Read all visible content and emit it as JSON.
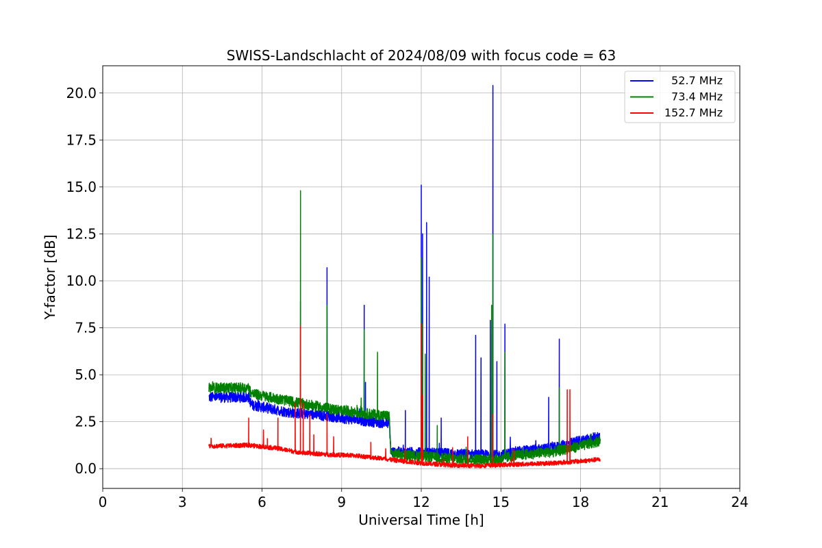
{
  "chart_data": {
    "type": "line",
    "title": "SWISS-Landschlacht of 2024/08/09 with focus code = 63",
    "xlabel": "Universal Time [h]",
    "ylabel": "Y-factor [dB]",
    "xlim": [
      0,
      24
    ],
    "ylim": [
      -1.05,
      21.45
    ],
    "xticks": [
      "0",
      "3",
      "6",
      "9",
      "12",
      "15",
      "18",
      "21",
      "24"
    ],
    "xtick_values": [
      0,
      3,
      6,
      9,
      12,
      15,
      18,
      21,
      24
    ],
    "yticks": [
      "0.0",
      "2.5",
      "5.0",
      "7.5",
      "10.0",
      "12.5",
      "15.0",
      "17.5",
      "20.0"
    ],
    "ytick_values": [
      0,
      2.5,
      5,
      7.5,
      10,
      12.5,
      15,
      17.5,
      20
    ],
    "grid": true,
    "legend_position": "top-right",
    "series": [
      {
        "name": "52.7 MHz",
        "color": "#0000ff",
        "baseline": [
          [
            4.0,
            3.8
          ],
          [
            5.5,
            3.8
          ],
          [
            5.6,
            3.4
          ],
          [
            7.0,
            3.0
          ],
          [
            8.5,
            2.8
          ],
          [
            9.5,
            2.6
          ],
          [
            10.8,
            2.4
          ],
          [
            10.85,
            0.9
          ],
          [
            13.0,
            0.8
          ],
          [
            15.0,
            0.7
          ],
          [
            15.5,
            0.9
          ],
          [
            17.0,
            1.1
          ],
          [
            18.0,
            1.5
          ],
          [
            18.75,
            1.7
          ]
        ],
        "noise": 0.28,
        "spikes": [
          [
            7.45,
            8.9
          ],
          [
            8.45,
            10.7
          ],
          [
            9.85,
            8.7
          ],
          [
            9.9,
            4.6
          ],
          [
            11.4,
            3.1
          ],
          [
            12.0,
            15.1
          ],
          [
            12.05,
            12.5
          ],
          [
            12.2,
            13.1
          ],
          [
            12.3,
            10.2
          ],
          [
            12.75,
            2.7
          ],
          [
            14.05,
            7.1
          ],
          [
            14.25,
            5.9
          ],
          [
            14.6,
            7.9
          ],
          [
            14.7,
            20.4
          ],
          [
            14.85,
            5.7
          ],
          [
            15.15,
            7.7
          ],
          [
            16.8,
            3.8
          ],
          [
            17.2,
            6.9
          ]
        ]
      },
      {
        "name": "73.4 MHz",
        "color": "#008000",
        "baseline": [
          [
            4.0,
            4.3
          ],
          [
            5.5,
            4.3
          ],
          [
            5.6,
            4.0
          ],
          [
            7.0,
            3.6
          ],
          [
            8.5,
            3.2
          ],
          [
            9.5,
            3.0
          ],
          [
            10.8,
            2.8
          ],
          [
            10.85,
            0.8
          ],
          [
            12.5,
            0.6
          ],
          [
            13.5,
            0.5
          ],
          [
            15.0,
            0.5
          ],
          [
            15.5,
            0.7
          ],
          [
            17.0,
            0.9
          ],
          [
            18.0,
            1.2
          ],
          [
            18.75,
            1.5
          ]
        ],
        "noise": 0.28,
        "spikes": [
          [
            7.45,
            14.8
          ],
          [
            8.45,
            8.7
          ],
          [
            9.85,
            7.4
          ],
          [
            10.35,
            6.2
          ],
          [
            12.0,
            11.2
          ],
          [
            12.05,
            7.7
          ],
          [
            12.15,
            6.1
          ],
          [
            12.6,
            2.3
          ],
          [
            14.65,
            8.7
          ],
          [
            14.7,
            12.5
          ],
          [
            15.15,
            6.2
          ],
          [
            17.2,
            4.3
          ]
        ]
      },
      {
        "name": "152.7 MHz",
        "color": "#ff0000",
        "baseline": [
          [
            4.0,
            1.2
          ],
          [
            5.5,
            1.25
          ],
          [
            6.5,
            1.1
          ],
          [
            7.5,
            0.85
          ],
          [
            8.5,
            0.75
          ],
          [
            9.5,
            0.7
          ],
          [
            10.5,
            0.55
          ],
          [
            11.0,
            0.45
          ],
          [
            12.0,
            0.3
          ],
          [
            13.0,
            0.2
          ],
          [
            14.0,
            0.15
          ],
          [
            15.0,
            0.2
          ],
          [
            16.0,
            0.25
          ],
          [
            17.0,
            0.3
          ],
          [
            18.0,
            0.4
          ],
          [
            18.75,
            0.5
          ]
        ],
        "noise": 0.12,
        "spikes": [
          [
            5.5,
            2.7
          ],
          [
            6.2,
            1.6
          ],
          [
            6.6,
            2.7
          ],
          [
            7.25,
            3.5
          ],
          [
            7.45,
            7.6
          ],
          [
            7.55,
            3.5
          ],
          [
            7.8,
            2.9
          ],
          [
            7.95,
            1.8
          ],
          [
            8.45,
            2.9
          ],
          [
            8.7,
            1.7
          ],
          [
            10.1,
            1.4
          ],
          [
            11.4,
            1.1
          ],
          [
            12.0,
            7.7
          ],
          [
            12.05,
            3.9
          ],
          [
            13.75,
            1.7
          ],
          [
            14.7,
            2.9
          ],
          [
            17.5,
            4.2
          ],
          [
            17.6,
            4.2
          ]
        ]
      }
    ]
  }
}
